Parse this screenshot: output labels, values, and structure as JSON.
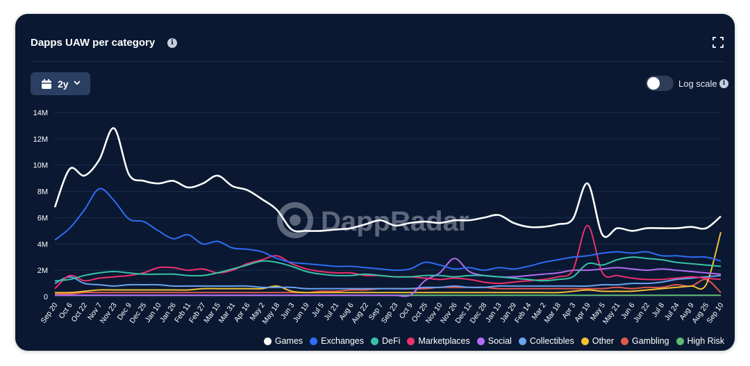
{
  "widget": {
    "title": "Dapps UAW per category",
    "range_label": "2y",
    "log_scale_label": "Log scale",
    "log_scale_enabled": false,
    "info_glyph": "i",
    "watermark": "DappRadar",
    "icons": {
      "info": "info-icon",
      "expand": "expand-icon",
      "calendar": "calendar-icon",
      "chevron": "chevron-down-icon"
    }
  },
  "chart_data": {
    "type": "line",
    "title": "Dapps UAW per category",
    "xlabel": "",
    "ylabel": "",
    "ylim": [
      0,
      14000000
    ],
    "y_ticks": [
      "0",
      "2M",
      "4M",
      "6M",
      "8M",
      "10M",
      "12M",
      "14M"
    ],
    "x": [
      "Sep 20",
      "Oct 6",
      "Oct 22",
      "Nov 7",
      "Nov 23",
      "Dec 9",
      "Dec 25",
      "Jan 10",
      "Jan 26",
      "Feb 11",
      "Feb 27",
      "Mar 15",
      "Mar 31",
      "Apr 16",
      "May 2",
      "May 18",
      "Jun 3",
      "Jun 19",
      "Jul 5",
      "Jul 21",
      "Aug 6",
      "Aug 22",
      "Sep 7",
      "Sep 23",
      "Oct 9",
      "Oct 25",
      "Nov 10",
      "Nov 26",
      "Dec 12",
      "Dec 28",
      "Jan 13",
      "Jan 29",
      "Feb 14",
      "Mar 2",
      "Mar 18",
      "Apr 3",
      "Apr 19",
      "May 5",
      "May 21",
      "Jun 6",
      "Jun 22",
      "Jul 8",
      "Jul 24",
      "Aug 9",
      "Aug 25",
      "Sep 10"
    ],
    "grid": true,
    "legend_position": "bottom-right",
    "series": [
      {
        "name": "Games",
        "color": "#ffffff",
        "values": [
          6.8,
          9.7,
          9.2,
          10.4,
          12.8,
          9.3,
          8.8,
          8.6,
          8.8,
          8.3,
          8.6,
          9.2,
          8.4,
          8.1,
          7.4,
          6.6,
          5.1,
          5.0,
          5.0,
          5.1,
          5.2,
          5.5,
          5.8,
          5.4,
          5.6,
          5.7,
          5.6,
          5.8,
          5.8,
          6.0,
          6.2,
          5.6,
          5.3,
          5.3,
          5.5,
          5.9,
          8.6,
          4.7,
          5.2,
          5.0,
          5.2,
          5.2,
          5.2,
          5.3,
          5.2,
          6.1
        ]
      },
      {
        "name": "Exchanges",
        "color": "#2f6df6",
        "values": [
          4.3,
          5.2,
          6.6,
          8.2,
          7.3,
          5.9,
          5.7,
          5.0,
          4.4,
          4.7,
          4.0,
          4.2,
          3.7,
          3.6,
          3.4,
          2.9,
          2.6,
          2.5,
          2.4,
          2.3,
          2.3,
          2.2,
          2.1,
          2.0,
          2.1,
          2.6,
          2.4,
          2.1,
          2.2,
          2.0,
          2.2,
          2.1,
          2.3,
          2.6,
          2.8,
          3.0,
          3.1,
          3.3,
          3.4,
          3.3,
          3.4,
          3.1,
          3.1,
          3.0,
          3.0,
          2.7
        ]
      },
      {
        "name": "DeFi",
        "color": "#38c3a5",
        "values": [
          1.2,
          1.3,
          1.6,
          1.8,
          1.9,
          1.8,
          1.7,
          1.7,
          1.7,
          1.6,
          1.6,
          1.8,
          2.1,
          2.4,
          2.7,
          2.6,
          2.3,
          1.9,
          1.7,
          1.6,
          1.6,
          1.7,
          1.6,
          1.5,
          1.5,
          1.6,
          1.6,
          1.5,
          1.6,
          1.6,
          1.5,
          1.4,
          1.3,
          1.2,
          1.3,
          1.5,
          2.5,
          2.4,
          2.8,
          3.0,
          2.9,
          2.8,
          2.6,
          2.5,
          2.4,
          2.3
        ]
      },
      {
        "name": "Marketplaces",
        "color": "#f0306e",
        "values": [
          0.6,
          1.6,
          1.2,
          1.4,
          1.5,
          1.6,
          1.8,
          2.2,
          2.2,
          2.0,
          2.1,
          1.8,
          2.0,
          2.5,
          2.8,
          3.1,
          2.5,
          2.1,
          1.9,
          1.8,
          1.8,
          1.6,
          1.6,
          1.5,
          1.5,
          1.4,
          1.3,
          1.4,
          1.3,
          1.1,
          1.0,
          1.1,
          1.2,
          1.3,
          1.5,
          2.0,
          5.4,
          1.8,
          1.6,
          1.4,
          1.3,
          1.3,
          1.4,
          1.5,
          1.4,
          1.3
        ]
      },
      {
        "name": "Social",
        "color": "#b36cf2",
        "values": [
          0.1,
          0.1,
          0.1,
          0.1,
          0.1,
          0.1,
          0.1,
          0.1,
          0.1,
          0.1,
          0.1,
          0.1,
          0.1,
          0.1,
          0.1,
          0.1,
          0.1,
          0.1,
          0.1,
          0.1,
          0.1,
          0.1,
          0.1,
          0.1,
          0.1,
          1.2,
          1.8,
          2.9,
          1.9,
          1.6,
          1.5,
          1.5,
          1.6,
          1.7,
          1.8,
          2.0,
          2.0,
          2.1,
          2.2,
          2.1,
          2.0,
          2.1,
          2.0,
          1.9,
          1.8,
          1.7
        ]
      },
      {
        "name": "Collectibles",
        "color": "#6aa4f0",
        "values": [
          1.0,
          1.5,
          1.0,
          0.9,
          0.8,
          0.9,
          0.9,
          0.9,
          0.8,
          0.8,
          0.8,
          0.8,
          0.8,
          0.8,
          0.7,
          0.7,
          0.7,
          0.6,
          0.6,
          0.6,
          0.6,
          0.6,
          0.6,
          0.6,
          0.6,
          0.7,
          0.7,
          0.8,
          0.7,
          0.7,
          0.8,
          0.8,
          0.8,
          0.8,
          0.8,
          0.8,
          0.8,
          0.9,
          0.9,
          1.0,
          1.0,
          1.1,
          1.3,
          1.4,
          1.5,
          1.6
        ]
      },
      {
        "name": "Other",
        "color": "#f2c232",
        "values": [
          0.3,
          0.3,
          0.4,
          0.5,
          0.5,
          0.5,
          0.5,
          0.5,
          0.5,
          0.5,
          0.6,
          0.6,
          0.6,
          0.6,
          0.6,
          0.8,
          0.4,
          0.3,
          0.3,
          0.3,
          0.3,
          0.3,
          0.3,
          0.3,
          0.3,
          0.3,
          0.3,
          0.3,
          0.3,
          0.3,
          0.3,
          0.3,
          0.3,
          0.3,
          0.3,
          0.4,
          0.5,
          0.4,
          0.4,
          0.4,
          0.5,
          0.6,
          0.7,
          0.8,
          0.9,
          4.9
        ]
      },
      {
        "name": "Gambling",
        "color": "#e2594d",
        "values": [
          0.2,
          0.2,
          0.3,
          0.3,
          0.3,
          0.3,
          0.3,
          0.3,
          0.3,
          0.3,
          0.3,
          0.3,
          0.3,
          0.3,
          0.3,
          0.3,
          0.3,
          0.3,
          0.4,
          0.4,
          0.5,
          0.5,
          0.6,
          0.6,
          0.6,
          0.6,
          0.7,
          0.7,
          0.7,
          0.7,
          0.6,
          0.6,
          0.6,
          0.6,
          0.6,
          0.6,
          0.6,
          0.6,
          0.7,
          0.6,
          0.7,
          0.7,
          0.9,
          0.8,
          1.3,
          0.3
        ]
      },
      {
        "name": "High Risk",
        "color": "#5fb874",
        "values": [
          0.1,
          0.1,
          0.1,
          0.1,
          0.1,
          0.1,
          0.1,
          0.1,
          0.1,
          0.1,
          0.1,
          0.1,
          0.1,
          0.1,
          0.1,
          0.1,
          0.1,
          0.1,
          0.1,
          0.1,
          0.1,
          0.1,
          0.1,
          0.1,
          0.1,
          0.1,
          0.1,
          0.1,
          0.1,
          0.1,
          0.1,
          0.1,
          0.1,
          0.1,
          0.1,
          0.1,
          0.1,
          0.1,
          0.1,
          0.1,
          0.1,
          0.1,
          0.1,
          0.1,
          0.1,
          0.1
        ]
      }
    ],
    "value_unit_multiplier": 1000000
  }
}
